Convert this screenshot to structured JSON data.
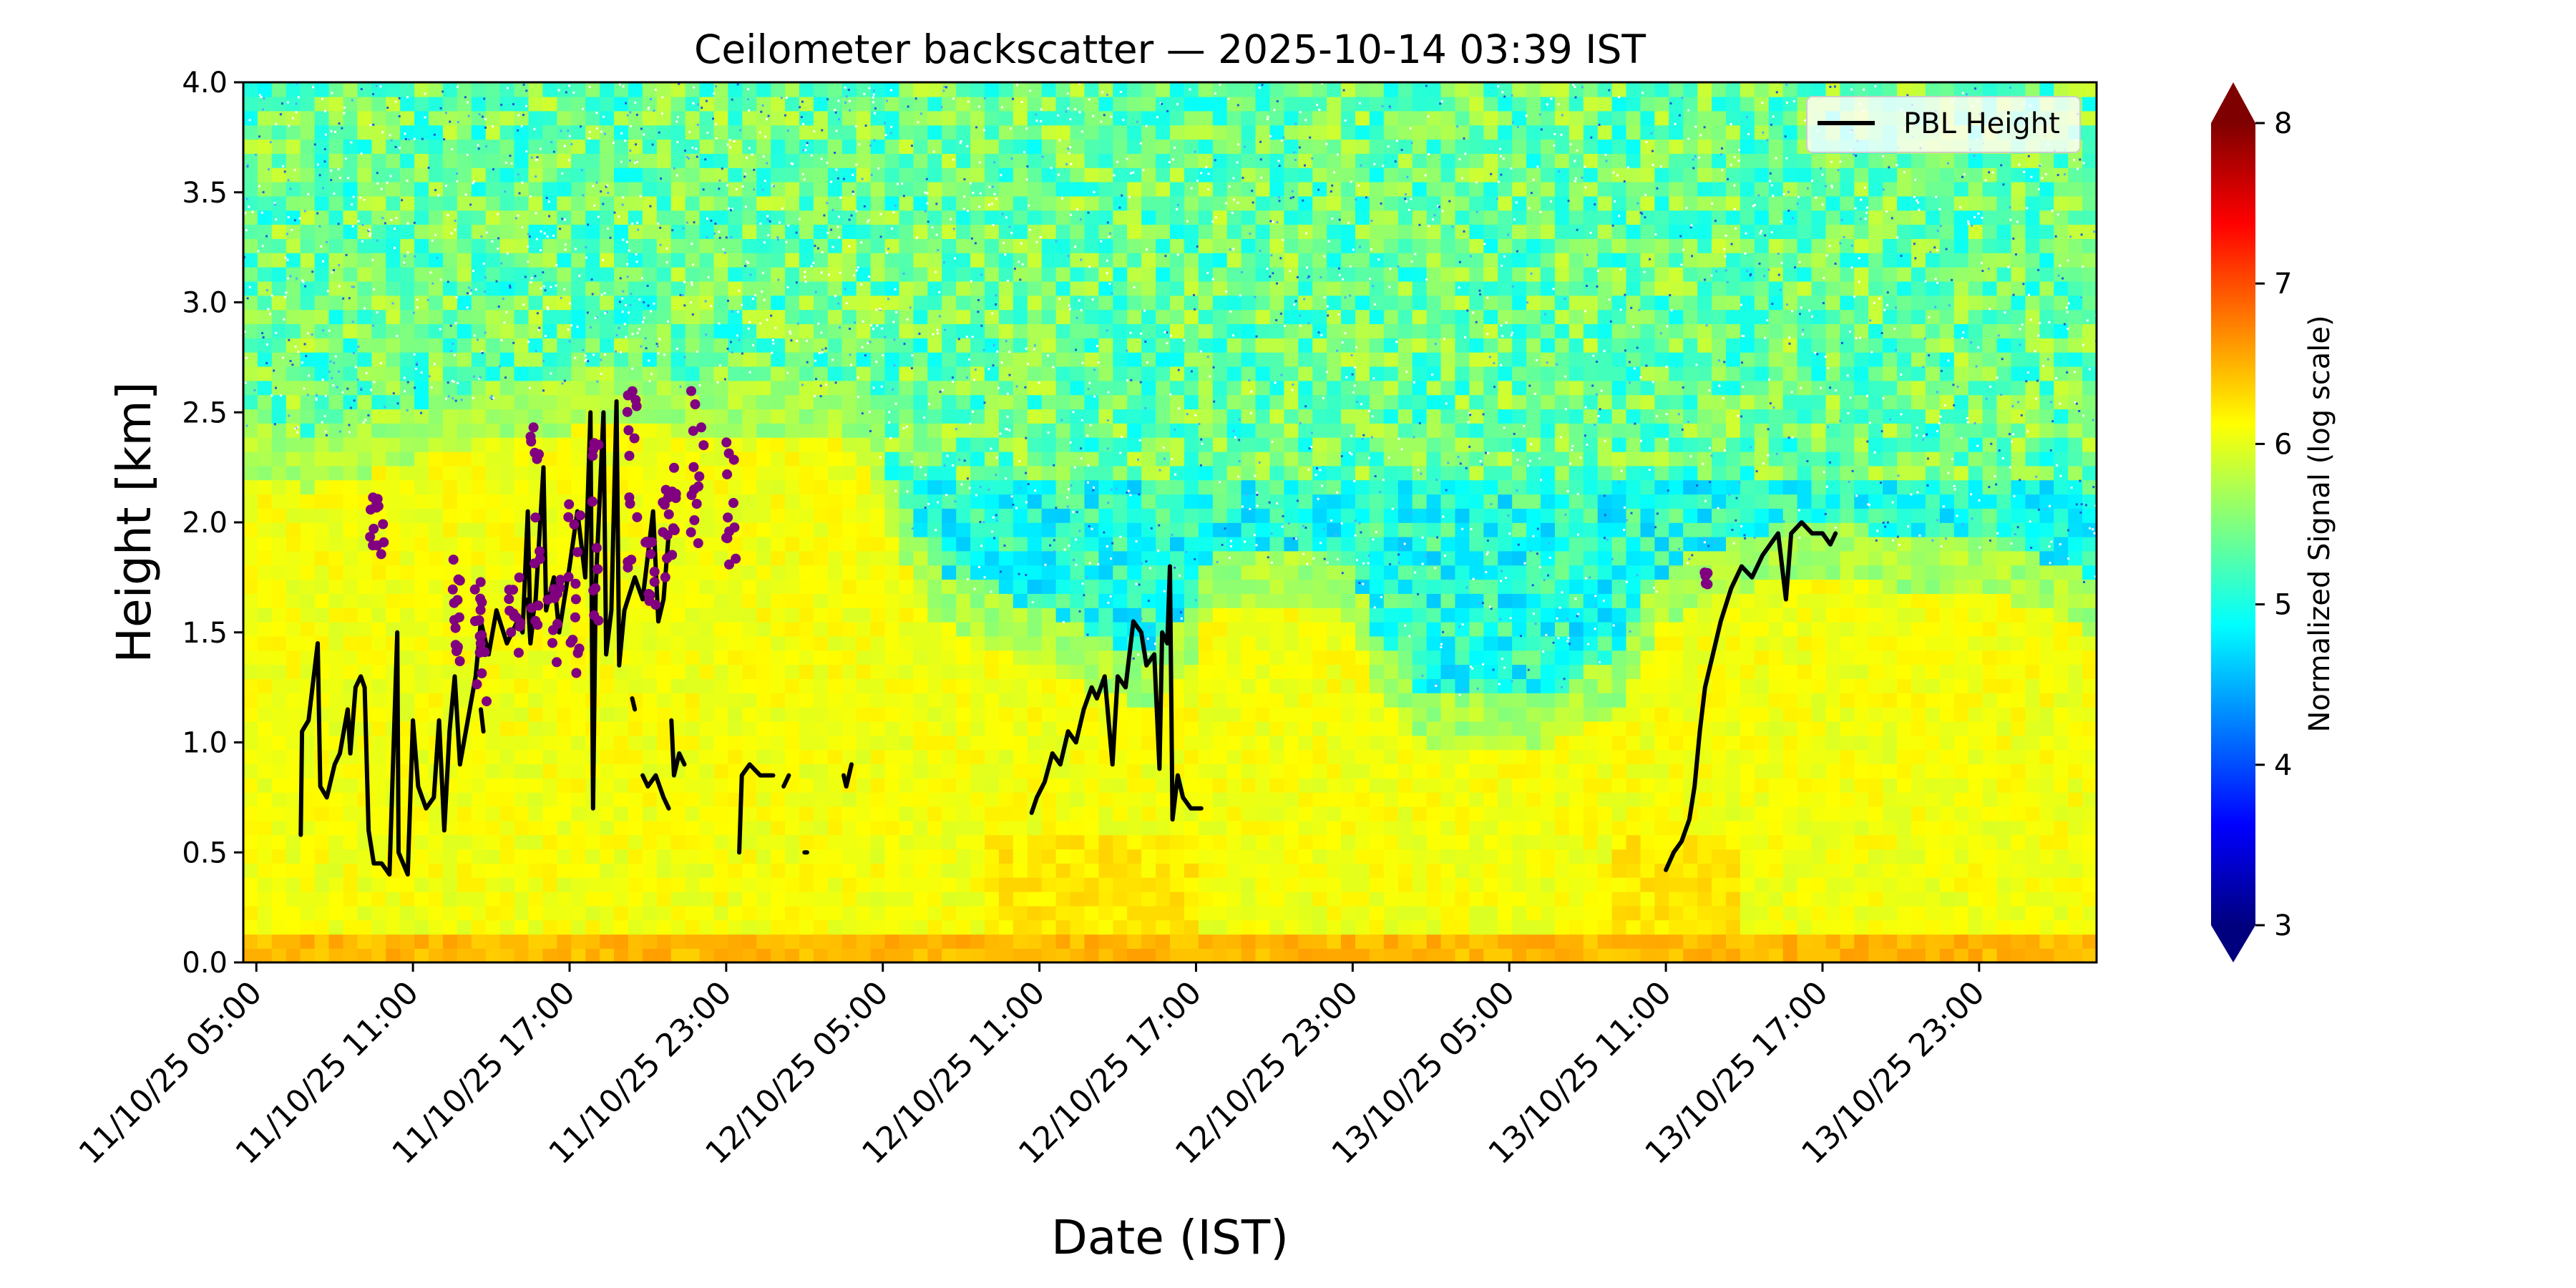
{
  "chart_data": {
    "type": "heatmap",
    "title": "Ceilometer backscatter — 2025-10-14 03:39 IST",
    "xlabel": "Date (IST)",
    "ylabel": "Height [km]",
    "x_tick_labels": [
      "11/10/25 05:00",
      "11/10/25 11:00",
      "11/10/25 17:00",
      "11/10/25 23:00",
      "12/10/25 05:00",
      "12/10/25 11:00",
      "12/10/25 17:00",
      "12/10/25 23:00",
      "13/10/25 05:00",
      "13/10/25 11:00",
      "13/10/25 17:00",
      "13/10/25 23:00"
    ],
    "x_range_hours": [
      -0.5,
      70.5
    ],
    "y_ticks": [
      0.0,
      0.5,
      1.0,
      1.5,
      2.0,
      2.5,
      3.0,
      3.5,
      4.0
    ],
    "y_tick_labels": [
      "0.0",
      "0.5",
      "1.0",
      "1.5",
      "2.0",
      "2.5",
      "3.0",
      "3.5",
      "4.0"
    ],
    "ylim": [
      0,
      4
    ],
    "colorbar": {
      "label": "Normalized Signal (log scale)",
      "range": [
        3,
        8
      ],
      "ticks": [
        3,
        4,
        5,
        6,
        7,
        8
      ],
      "tick_labels": [
        "3",
        "4",
        "5",
        "6",
        "7",
        "8"
      ],
      "colormap": "jet",
      "extend": "both",
      "stops": [
        "#00007f",
        "#0000ff",
        "#007fff",
        "#00ffff",
        "#7fff7f",
        "#ffff00",
        "#ff7f00",
        "#ff0000",
        "#7f0000"
      ]
    },
    "legend": {
      "placement": "top-right",
      "entries": [
        {
          "label": "PBL Height",
          "color": "#000000"
        }
      ]
    },
    "layer_tops_km": [
      [
        0.0,
        2.35
      ],
      [
        2.0,
        2.3
      ],
      [
        5.0,
        2.4
      ],
      [
        8.0,
        2.5
      ],
      [
        11.0,
        2.55
      ],
      [
        14.0,
        2.6
      ],
      [
        17.0,
        2.55
      ],
      [
        20.0,
        2.55
      ],
      [
        23.0,
        2.5
      ],
      [
        24.0,
        2.2
      ],
      [
        26.0,
        1.7
      ],
      [
        28.0,
        1.6
      ],
      [
        30.0,
        1.5
      ],
      [
        32.0,
        1.4
      ],
      [
        34.0,
        1.3
      ],
      [
        36.0,
        1.55
      ],
      [
        36.5,
        1.75
      ],
      [
        38.0,
        1.75
      ],
      [
        41.0,
        1.75
      ],
      [
        42.0,
        1.7
      ],
      [
        43.0,
        1.35
      ],
      [
        45.0,
        1.1
      ],
      [
        47.0,
        1.15
      ],
      [
        50.0,
        1.15
      ],
      [
        52.0,
        1.3
      ],
      [
        54.0,
        1.7
      ],
      [
        57.0,
        1.85
      ],
      [
        60.0,
        1.9
      ],
      [
        63.0,
        1.85
      ],
      [
        67.0,
        1.8
      ],
      [
        70.5,
        1.65
      ]
    ],
    "series": [
      {
        "name": "PBL Height",
        "color": "#000000",
        "segments": [
          [
            [
              1.7,
              0.58
            ],
            [
              1.75,
              1.05
            ],
            [
              2.0,
              1.1
            ],
            [
              2.2,
              1.3
            ],
            [
              2.35,
              1.45
            ],
            [
              2.45,
              0.8
            ],
            [
              2.7,
              0.75
            ],
            [
              3.0,
              0.9
            ],
            [
              3.2,
              0.95
            ],
            [
              3.5,
              1.15
            ],
            [
              3.6,
              0.95
            ],
            [
              3.8,
              1.25
            ],
            [
              4.0,
              1.3
            ],
            [
              4.15,
              1.25
            ],
            [
              4.3,
              0.6
            ],
            [
              4.5,
              0.45
            ],
            [
              4.8,
              0.45
            ],
            [
              5.1,
              0.4
            ],
            [
              5.4,
              1.5
            ],
            [
              5.45,
              0.5
            ],
            [
              5.8,
              0.4
            ],
            [
              6.0,
              1.1
            ],
            [
              6.2,
              0.8
            ],
            [
              6.5,
              0.7
            ],
            [
              6.8,
              0.75
            ],
            [
              7.0,
              1.1
            ],
            [
              7.2,
              0.6
            ],
            [
              7.4,
              1.05
            ],
            [
              7.6,
              1.3
            ],
            [
              7.8,
              0.9
            ],
            [
              8.1,
              1.1
            ],
            [
              8.4,
              1.3
            ],
            [
              8.6,
              1.55
            ],
            [
              8.9,
              1.4
            ],
            [
              9.2,
              1.6
            ],
            [
              9.6,
              1.45
            ],
            [
              10.0,
              1.55
            ],
            [
              10.2,
              1.5
            ],
            [
              10.4,
              2.05
            ],
            [
              10.5,
              1.5
            ],
            [
              10.7,
              1.65
            ],
            [
              11.0,
              2.25
            ],
            [
              11.1,
              1.6
            ],
            [
              11.4,
              1.75
            ],
            [
              11.6,
              1.5
            ],
            [
              12.0,
              1.8
            ],
            [
              12.3,
              2.05
            ],
            [
              12.6,
              1.75
            ],
            [
              12.8,
              2.5
            ],
            [
              12.9,
              0.7
            ],
            [
              13.0,
              1.7
            ],
            [
              13.3,
              2.5
            ],
            [
              13.4,
              1.4
            ],
            [
              13.6,
              1.6
            ],
            [
              13.8,
              2.55
            ],
            [
              13.9,
              1.35
            ],
            [
              14.1,
              1.6
            ],
            [
              14.5,
              1.75
            ],
            [
              14.8,
              1.65
            ],
            [
              15.2,
              2.05
            ],
            [
              15.4,
              1.55
            ],
            [
              15.6,
              1.65
            ],
            [
              15.8,
              1.95
            ]
          ],
          [
            [
              8.6,
              1.15
            ],
            [
              8.7,
              1.05
            ]
          ],
          [
            [
              10.4,
              1.65
            ],
            [
              10.5,
              1.45
            ],
            [
              10.6,
              1.55
            ]
          ],
          [
            [
              14.4,
              1.2
            ],
            [
              14.5,
              1.15
            ]
          ],
          [
            [
              14.8,
              0.85
            ],
            [
              15.0,
              0.8
            ],
            [
              15.3,
              0.85
            ],
            [
              15.6,
              0.75
            ],
            [
              15.8,
              0.7
            ]
          ],
          [
            [
              15.9,
              1.1
            ],
            [
              16.0,
              0.85
            ],
            [
              16.2,
              0.95
            ],
            [
              16.4,
              0.9
            ]
          ],
          [
            [
              18.5,
              0.5
            ],
            [
              18.6,
              0.85
            ],
            [
              18.9,
              0.9
            ],
            [
              19.3,
              0.85
            ],
            [
              19.8,
              0.85
            ]
          ],
          [
            [
              20.2,
              0.8
            ],
            [
              20.4,
              0.85
            ]
          ],
          [
            [
              21.0,
              0.5
            ],
            [
              21.1,
              0.5
            ]
          ],
          [
            [
              22.5,
              0.85
            ],
            [
              22.6,
              0.8
            ],
            [
              22.8,
              0.9
            ]
          ],
          [
            [
              29.7,
              0.68
            ],
            [
              29.9,
              0.75
            ],
            [
              30.2,
              0.82
            ],
            [
              30.5,
              0.95
            ],
            [
              30.8,
              0.9
            ],
            [
              31.1,
              1.05
            ],
            [
              31.4,
              1.0
            ],
            [
              31.7,
              1.15
            ],
            [
              32.0,
              1.25
            ],
            [
              32.2,
              1.2
            ],
            [
              32.5,
              1.3
            ],
            [
              32.8,
              0.9
            ],
            [
              33.0,
              1.3
            ],
            [
              33.3,
              1.25
            ],
            [
              33.6,
              1.55
            ],
            [
              33.9,
              1.5
            ],
            [
              34.1,
              1.35
            ],
            [
              34.4,
              1.4
            ],
            [
              34.6,
              0.88
            ],
            [
              34.7,
              1.5
            ],
            [
              34.9,
              1.45
            ],
            [
              35.0,
              1.8
            ],
            [
              35.1,
              0.65
            ],
            [
              35.3,
              0.85
            ],
            [
              35.5,
              0.75
            ],
            [
              35.8,
              0.7
            ],
            [
              36.2,
              0.7
            ]
          ],
          [
            [
              54.0,
              0.42
            ],
            [
              54.3,
              0.5
            ],
            [
              54.6,
              0.55
            ],
            [
              54.9,
              0.65
            ],
            [
              55.1,
              0.8
            ],
            [
              55.3,
              1.05
            ],
            [
              55.5,
              1.25
            ],
            [
              55.8,
              1.4
            ],
            [
              56.1,
              1.55
            ],
            [
              56.5,
              1.7
            ],
            [
              56.9,
              1.8
            ],
            [
              57.3,
              1.75
            ],
            [
              57.7,
              1.85
            ],
            [
              58.0,
              1.9
            ],
            [
              58.3,
              1.95
            ],
            [
              58.6,
              1.65
            ],
            [
              58.8,
              1.95
            ],
            [
              59.2,
              2.0
            ],
            [
              59.6,
              1.95
            ],
            [
              60.0,
              1.95
            ],
            [
              60.3,
              1.9
            ],
            [
              60.5,
              1.95
            ]
          ]
        ]
      },
      {
        "name": "",
        "color": "#800080",
        "clusters": [
          [
            4.6,
            2.0,
            0.6,
            0.15,
            14
          ],
          [
            7.7,
            1.6,
            0.4,
            0.3,
            14
          ],
          [
            8.6,
            1.45,
            0.5,
            0.3,
            16
          ],
          [
            9.9,
            1.6,
            0.5,
            0.25,
            12
          ],
          [
            10.7,
            1.95,
            0.4,
            0.5,
            14
          ],
          [
            11.4,
            1.55,
            0.5,
            0.2,
            12
          ],
          [
            12.2,
            1.7,
            0.5,
            0.4,
            14
          ],
          [
            13.0,
            1.95,
            0.3,
            0.5,
            12
          ],
          [
            14.4,
            2.15,
            0.4,
            0.45,
            14
          ],
          [
            15.1,
            1.75,
            0.4,
            0.2,
            12
          ],
          [
            15.8,
            2.0,
            0.6,
            0.25,
            16
          ],
          [
            16.9,
            2.25,
            0.5,
            0.35,
            14
          ],
          [
            18.2,
            2.1,
            0.4,
            0.3,
            12
          ],
          [
            55.5,
            1.75,
            0.2,
            0.05,
            5
          ]
        ]
      }
    ]
  }
}
